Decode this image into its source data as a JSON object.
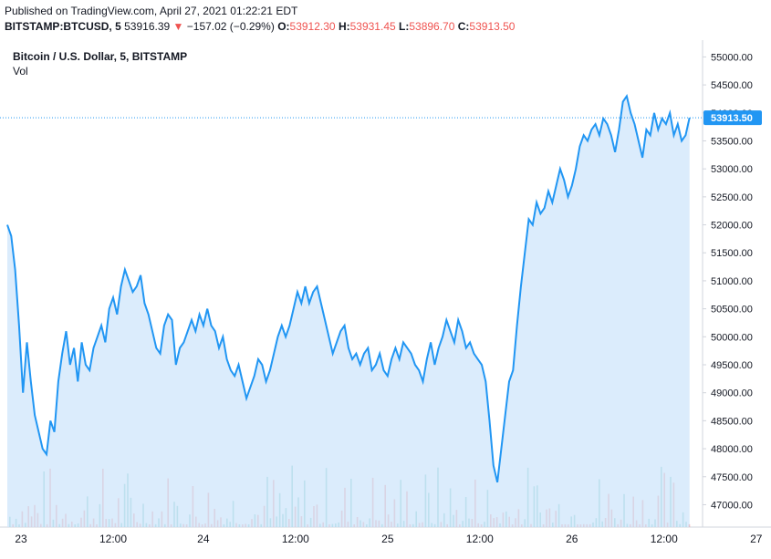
{
  "header": {
    "published": "Published on TradingView.com, April 27, 2021 01:22:21 EDT",
    "symbol": "BITSTAMP:BTCUSD, 5",
    "last": "53916.39",
    "change": "−157.02 (−0.29%)",
    "open_label": "O:",
    "open": "53912.30",
    "high_label": "H:",
    "high": "53931.45",
    "low_label": "L:",
    "low": "53896.70",
    "close_label": "C:",
    "close": "53913.50"
  },
  "legend": {
    "title": "Bitcoin / U.S. Dollar, 5, BITSTAMP",
    "volume": "Vol"
  },
  "colors": {
    "line": "#2196f3",
    "area": "#cfe6fb",
    "up_volume": "#26a69a",
    "down_volume": "#ef5350",
    "price_tag": "#2196f3"
  },
  "chart_data": {
    "type": "area",
    "y_range": [
      46600,
      55300
    ],
    "y_ticks": [
      "55000.00",
      "54500.00",
      "54000.00",
      "53500.00",
      "53000.00",
      "52500.00",
      "52000.00",
      "51500.00",
      "51000.00",
      "50500.00",
      "50000.00",
      "49500.00",
      "49000.00",
      "48500.00",
      "48000.00",
      "47500.00",
      "47000.00"
    ],
    "x_ticks": [
      {
        "label": "23",
        "t": 0.07
      },
      {
        "label": "12:00",
        "t": 0.54
      },
      {
        "label": "24",
        "t": 1.0
      },
      {
        "label": "12:00",
        "t": 1.47
      },
      {
        "label": "25",
        "t": 1.94
      },
      {
        "label": "12:00",
        "t": 2.41
      },
      {
        "label": "26",
        "t": 2.88
      },
      {
        "label": "12:00",
        "t": 3.35
      },
      {
        "label": "27",
        "t": 3.82
      }
    ],
    "last_price": "53913.50",
    "series": [
      {
        "points": [
          [
            0,
            52000
          ],
          [
            0.02,
            51800
          ],
          [
            0.04,
            51200
          ],
          [
            0.06,
            50200
          ],
          [
            0.08,
            49000
          ],
          [
            0.1,
            49900
          ],
          [
            0.12,
            49200
          ],
          [
            0.14,
            48600
          ],
          [
            0.16,
            48300
          ],
          [
            0.18,
            48000
          ],
          [
            0.2,
            47900
          ],
          [
            0.22,
            48500
          ],
          [
            0.24,
            48300
          ],
          [
            0.26,
            49200
          ],
          [
            0.28,
            49700
          ],
          [
            0.3,
            50100
          ],
          [
            0.32,
            49500
          ],
          [
            0.34,
            49800
          ],
          [
            0.36,
            49200
          ],
          [
            0.38,
            49900
          ],
          [
            0.4,
            49500
          ],
          [
            0.42,
            49400
          ],
          [
            0.44,
            49800
          ],
          [
            0.46,
            50000
          ],
          [
            0.48,
            50200
          ],
          [
            0.5,
            49900
          ],
          [
            0.52,
            50500
          ],
          [
            0.54,
            50700
          ],
          [
            0.56,
            50400
          ],
          [
            0.58,
            50900
          ],
          [
            0.6,
            51200
          ],
          [
            0.62,
            51000
          ],
          [
            0.64,
            50800
          ],
          [
            0.66,
            50900
          ],
          [
            0.68,
            51100
          ],
          [
            0.7,
            50600
          ],
          [
            0.72,
            50400
          ],
          [
            0.74,
            50100
          ],
          [
            0.76,
            49800
          ],
          [
            0.78,
            49700
          ],
          [
            0.8,
            50200
          ],
          [
            0.82,
            50400
          ],
          [
            0.84,
            50300
          ],
          [
            0.86,
            49500
          ],
          [
            0.88,
            49800
          ],
          [
            0.9,
            49900
          ],
          [
            0.92,
            50100
          ],
          [
            0.94,
            50300
          ],
          [
            0.96,
            50100
          ],
          [
            0.98,
            50400
          ],
          [
            1.0,
            50200
          ],
          [
            1.02,
            50500
          ],
          [
            1.04,
            50200
          ],
          [
            1.06,
            50100
          ],
          [
            1.08,
            49800
          ],
          [
            1.1,
            50000
          ],
          [
            1.12,
            49600
          ],
          [
            1.14,
            49400
          ],
          [
            1.16,
            49300
          ],
          [
            1.18,
            49500
          ],
          [
            1.2,
            49200
          ],
          [
            1.22,
            48900
          ],
          [
            1.24,
            49100
          ],
          [
            1.26,
            49300
          ],
          [
            1.28,
            49600
          ],
          [
            1.3,
            49500
          ],
          [
            1.32,
            49200
          ],
          [
            1.34,
            49400
          ],
          [
            1.36,
            49700
          ],
          [
            1.38,
            50000
          ],
          [
            1.4,
            50200
          ],
          [
            1.42,
            50000
          ],
          [
            1.44,
            50200
          ],
          [
            1.46,
            50500
          ],
          [
            1.48,
            50800
          ],
          [
            1.5,
            50600
          ],
          [
            1.52,
            50900
          ],
          [
            1.54,
            50600
          ],
          [
            1.56,
            50800
          ],
          [
            1.58,
            50900
          ],
          [
            1.6,
            50600
          ],
          [
            1.62,
            50300
          ],
          [
            1.64,
            50000
          ],
          [
            1.66,
            49700
          ],
          [
            1.68,
            49900
          ],
          [
            1.7,
            50100
          ],
          [
            1.72,
            50200
          ],
          [
            1.74,
            49800
          ],
          [
            1.76,
            49600
          ],
          [
            1.78,
            49700
          ],
          [
            1.8,
            49500
          ],
          [
            1.82,
            49700
          ],
          [
            1.84,
            49800
          ],
          [
            1.86,
            49400
          ],
          [
            1.88,
            49500
          ],
          [
            1.9,
            49700
          ],
          [
            1.92,
            49400
          ],
          [
            1.94,
            49300
          ],
          [
            1.96,
            49600
          ],
          [
            1.98,
            49800
          ],
          [
            2.0,
            49600
          ],
          [
            2.02,
            49900
          ],
          [
            2.04,
            49800
          ],
          [
            2.06,
            49700
          ],
          [
            2.08,
            49500
          ],
          [
            2.1,
            49400
          ],
          [
            2.12,
            49200
          ],
          [
            2.14,
            49600
          ],
          [
            2.16,
            49900
          ],
          [
            2.18,
            49500
          ],
          [
            2.2,
            49800
          ],
          [
            2.22,
            50000
          ],
          [
            2.24,
            50300
          ],
          [
            2.26,
            50100
          ],
          [
            2.28,
            49900
          ],
          [
            2.3,
            50300
          ],
          [
            2.32,
            50100
          ],
          [
            2.34,
            49800
          ],
          [
            2.36,
            49900
          ],
          [
            2.38,
            49700
          ],
          [
            2.4,
            49600
          ],
          [
            2.42,
            49500
          ],
          [
            2.44,
            49200
          ],
          [
            2.46,
            48500
          ],
          [
            2.48,
            47700
          ],
          [
            2.5,
            47400
          ],
          [
            2.52,
            48000
          ],
          [
            2.54,
            48600
          ],
          [
            2.56,
            49200
          ],
          [
            2.58,
            49400
          ],
          [
            2.6,
            50200
          ],
          [
            2.62,
            50900
          ],
          [
            2.64,
            51500
          ],
          [
            2.66,
            52100
          ],
          [
            2.68,
            52000
          ],
          [
            2.7,
            52400
          ],
          [
            2.72,
            52200
          ],
          [
            2.74,
            52300
          ],
          [
            2.76,
            52600
          ],
          [
            2.78,
            52400
          ],
          [
            2.8,
            52700
          ],
          [
            2.82,
            53000
          ],
          [
            2.84,
            52800
          ],
          [
            2.86,
            52500
          ],
          [
            2.88,
            52700
          ],
          [
            2.9,
            53000
          ],
          [
            2.92,
            53400
          ],
          [
            2.94,
            53600
          ],
          [
            2.96,
            53500
          ],
          [
            2.98,
            53700
          ],
          [
            3.0,
            53800
          ],
          [
            3.02,
            53600
          ],
          [
            3.04,
            53900
          ],
          [
            3.06,
            53800
          ],
          [
            3.08,
            53600
          ],
          [
            3.1,
            53300
          ],
          [
            3.12,
            53700
          ],
          [
            3.14,
            54200
          ],
          [
            3.16,
            54300
          ],
          [
            3.18,
            54000
          ],
          [
            3.2,
            53800
          ],
          [
            3.22,
            53500
          ],
          [
            3.24,
            53200
          ],
          [
            3.26,
            53700
          ],
          [
            3.28,
            53600
          ],
          [
            3.3,
            54000
          ],
          [
            3.32,
            53700
          ],
          [
            3.34,
            53900
          ],
          [
            3.36,
            53800
          ],
          [
            3.38,
            54000
          ],
          [
            3.4,
            53600
          ],
          [
            3.42,
            53800
          ],
          [
            3.44,
            53500
          ],
          [
            3.46,
            53600
          ],
          [
            3.48,
            53913
          ]
        ]
      }
    ],
    "volume_ticks": 220
  }
}
